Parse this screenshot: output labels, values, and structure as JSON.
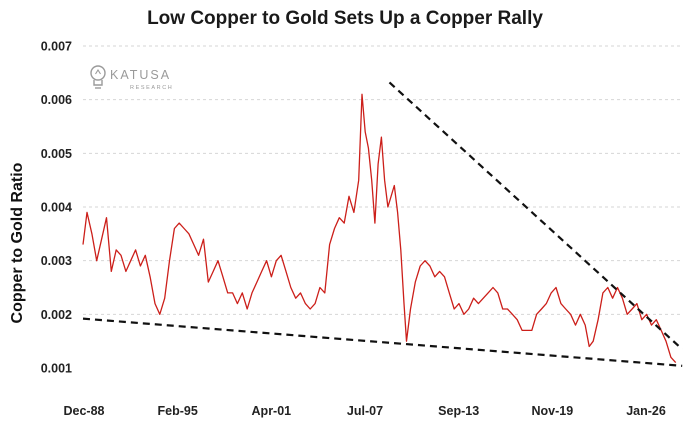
{
  "chart_data": {
    "type": "line",
    "title": "Low Copper to Gold Sets Up a Copper Rally",
    "ylabel": "Copper to Gold Ratio",
    "xlabel": "",
    "ylim": [
      0.001,
      0.007
    ],
    "yticks": [
      "0.007",
      "0.006",
      "0.005",
      "0.004",
      "0.003",
      "0.002",
      "0.001"
    ],
    "xticks": [
      "Dec-88",
      "Feb-95",
      "Apr-01",
      "Jul-07",
      "Sep-13",
      "Nov-19",
      "Jan-26"
    ],
    "grid": true,
    "series_color": "#cc1f1a",
    "series": [
      {
        "x": [
          1988.95,
          1989.2,
          1989.5,
          1989.8,
          1990.1,
          1990.4,
          1990.7,
          1991.0,
          1991.3,
          1991.6,
          1991.9,
          1992.2,
          1992.5,
          1992.8,
          1993.1,
          1993.4,
          1993.7,
          1994.0,
          1994.3,
          1994.6,
          1994.9,
          1995.2,
          1995.5,
          1995.8,
          1996.1,
          1996.4,
          1996.7,
          1997.0,
          1997.3,
          1997.6,
          1997.9,
          1998.2,
          1998.5,
          1998.8,
          1999.1,
          1999.4,
          1999.7,
          2000.0,
          2000.3,
          2000.6,
          2000.9,
          2001.2,
          2001.5,
          2001.8,
          2002.1,
          2002.4,
          2002.7,
          2003.0,
          2003.3,
          2003.6,
          2003.9,
          2004.2,
          2004.5,
          2004.8,
          2005.1,
          2005.4,
          2005.7,
          2006.0,
          2006.2,
          2006.4,
          2006.6,
          2006.8,
          2007.0,
          2007.2,
          2007.4,
          2007.6,
          2007.8,
          2008.0,
          2008.2,
          2008.4,
          2008.6,
          2008.8,
          2008.95,
          2009.2,
          2009.5,
          2009.8,
          2010.1,
          2010.4,
          2010.7,
          2011.0,
          2011.3,
          2011.6,
          2011.9,
          2012.2,
          2012.5,
          2012.8,
          2013.1,
          2013.4,
          2013.7,
          2014.0,
          2014.3,
          2014.6,
          2014.9,
          2015.2,
          2015.5,
          2015.8,
          2016.1,
          2016.4,
          2016.7,
          2017.0,
          2017.3,
          2017.6,
          2017.9,
          2018.2,
          2018.5,
          2018.8,
          2019.1,
          2019.4,
          2019.7,
          2020.0,
          2020.25,
          2020.5,
          2020.8,
          2021.1,
          2021.4,
          2021.7,
          2022.0,
          2022.3,
          2022.6,
          2022.9,
          2023.2,
          2023.5,
          2023.8,
          2024.1,
          2024.4,
          2024.7,
          2025.0,
          2025.3,
          2025.6
        ],
        "y": [
          0.0033,
          0.0039,
          0.0035,
          0.003,
          0.0034,
          0.0038,
          0.0028,
          0.0032,
          0.0031,
          0.0028,
          0.003,
          0.0032,
          0.0029,
          0.0031,
          0.0027,
          0.0022,
          0.002,
          0.0023,
          0.003,
          0.0036,
          0.0037,
          0.0036,
          0.0035,
          0.0033,
          0.0031,
          0.0034,
          0.0026,
          0.0028,
          0.003,
          0.0027,
          0.0024,
          0.0024,
          0.0022,
          0.0024,
          0.0021,
          0.0024,
          0.0026,
          0.0028,
          0.003,
          0.0027,
          0.003,
          0.0031,
          0.0028,
          0.0025,
          0.0023,
          0.0024,
          0.0022,
          0.0021,
          0.0022,
          0.0025,
          0.0024,
          0.0033,
          0.0036,
          0.0038,
          0.0037,
          0.0042,
          0.0039,
          0.0045,
          0.0061,
          0.0054,
          0.0051,
          0.0045,
          0.0037,
          0.0048,
          0.0053,
          0.0045,
          0.004,
          0.0042,
          0.0044,
          0.0039,
          0.0032,
          0.0022,
          0.0015,
          0.0021,
          0.0026,
          0.0029,
          0.003,
          0.0029,
          0.0027,
          0.0028,
          0.0027,
          0.0024,
          0.0021,
          0.0022,
          0.002,
          0.0021,
          0.0023,
          0.0022,
          0.0023,
          0.0024,
          0.0025,
          0.0024,
          0.0021,
          0.0021,
          0.002,
          0.0019,
          0.0017,
          0.0017,
          0.0017,
          0.002,
          0.0021,
          0.0022,
          0.0024,
          0.0025,
          0.0022,
          0.0021,
          0.002,
          0.0018,
          0.002,
          0.0018,
          0.0014,
          0.0015,
          0.0019,
          0.0024,
          0.0025,
          0.0023,
          0.0025,
          0.0023,
          0.002,
          0.0021,
          0.0022,
          0.0019,
          0.002,
          0.0018,
          0.0019,
          0.0017,
          0.0015,
          0.0012,
          0.0011
        ]
      }
    ],
    "trendlines": [
      {
        "style": "dashed",
        "color": "#111111",
        "from": [
          1988.95,
          0.00192
        ],
        "to": [
          2026.0,
          0.00104
        ]
      },
      {
        "style": "dashed",
        "color": "#111111",
        "from": [
          2007.9,
          0.00632
        ],
        "to": [
          2026.0,
          0.00135
        ]
      }
    ]
  },
  "logo": {
    "name": "KATUSA",
    "subtitle": "RESEARCH",
    "icon": "lightbulb-icon"
  }
}
